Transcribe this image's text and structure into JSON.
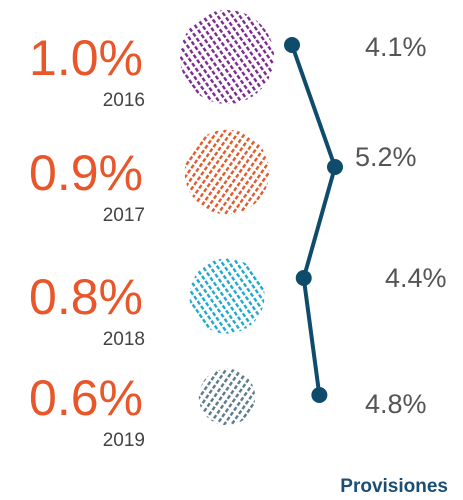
{
  "chart_data": {
    "type": "bubble-line",
    "categories": [
      "2016",
      "2017",
      "2018",
      "2019"
    ],
    "series": [
      {
        "values": [
          1.0,
          0.9,
          0.8,
          0.6
        ],
        "value_labels": [
          "1.0%",
          "0.9%",
          "0.8%",
          "0.6%"
        ],
        "colors": [
          "#7a2a90",
          "#e05a2b",
          "#1ea8d0",
          "#5b7b8c"
        ]
      },
      {
        "name": "Provisiones",
        "values": [
          4.1,
          5.2,
          4.4,
          4.8
        ],
        "value_labels": [
          "4.1%",
          "5.2%",
          "4.4%",
          "4.8%"
        ],
        "color": "#0f4c6b"
      }
    ]
  }
}
